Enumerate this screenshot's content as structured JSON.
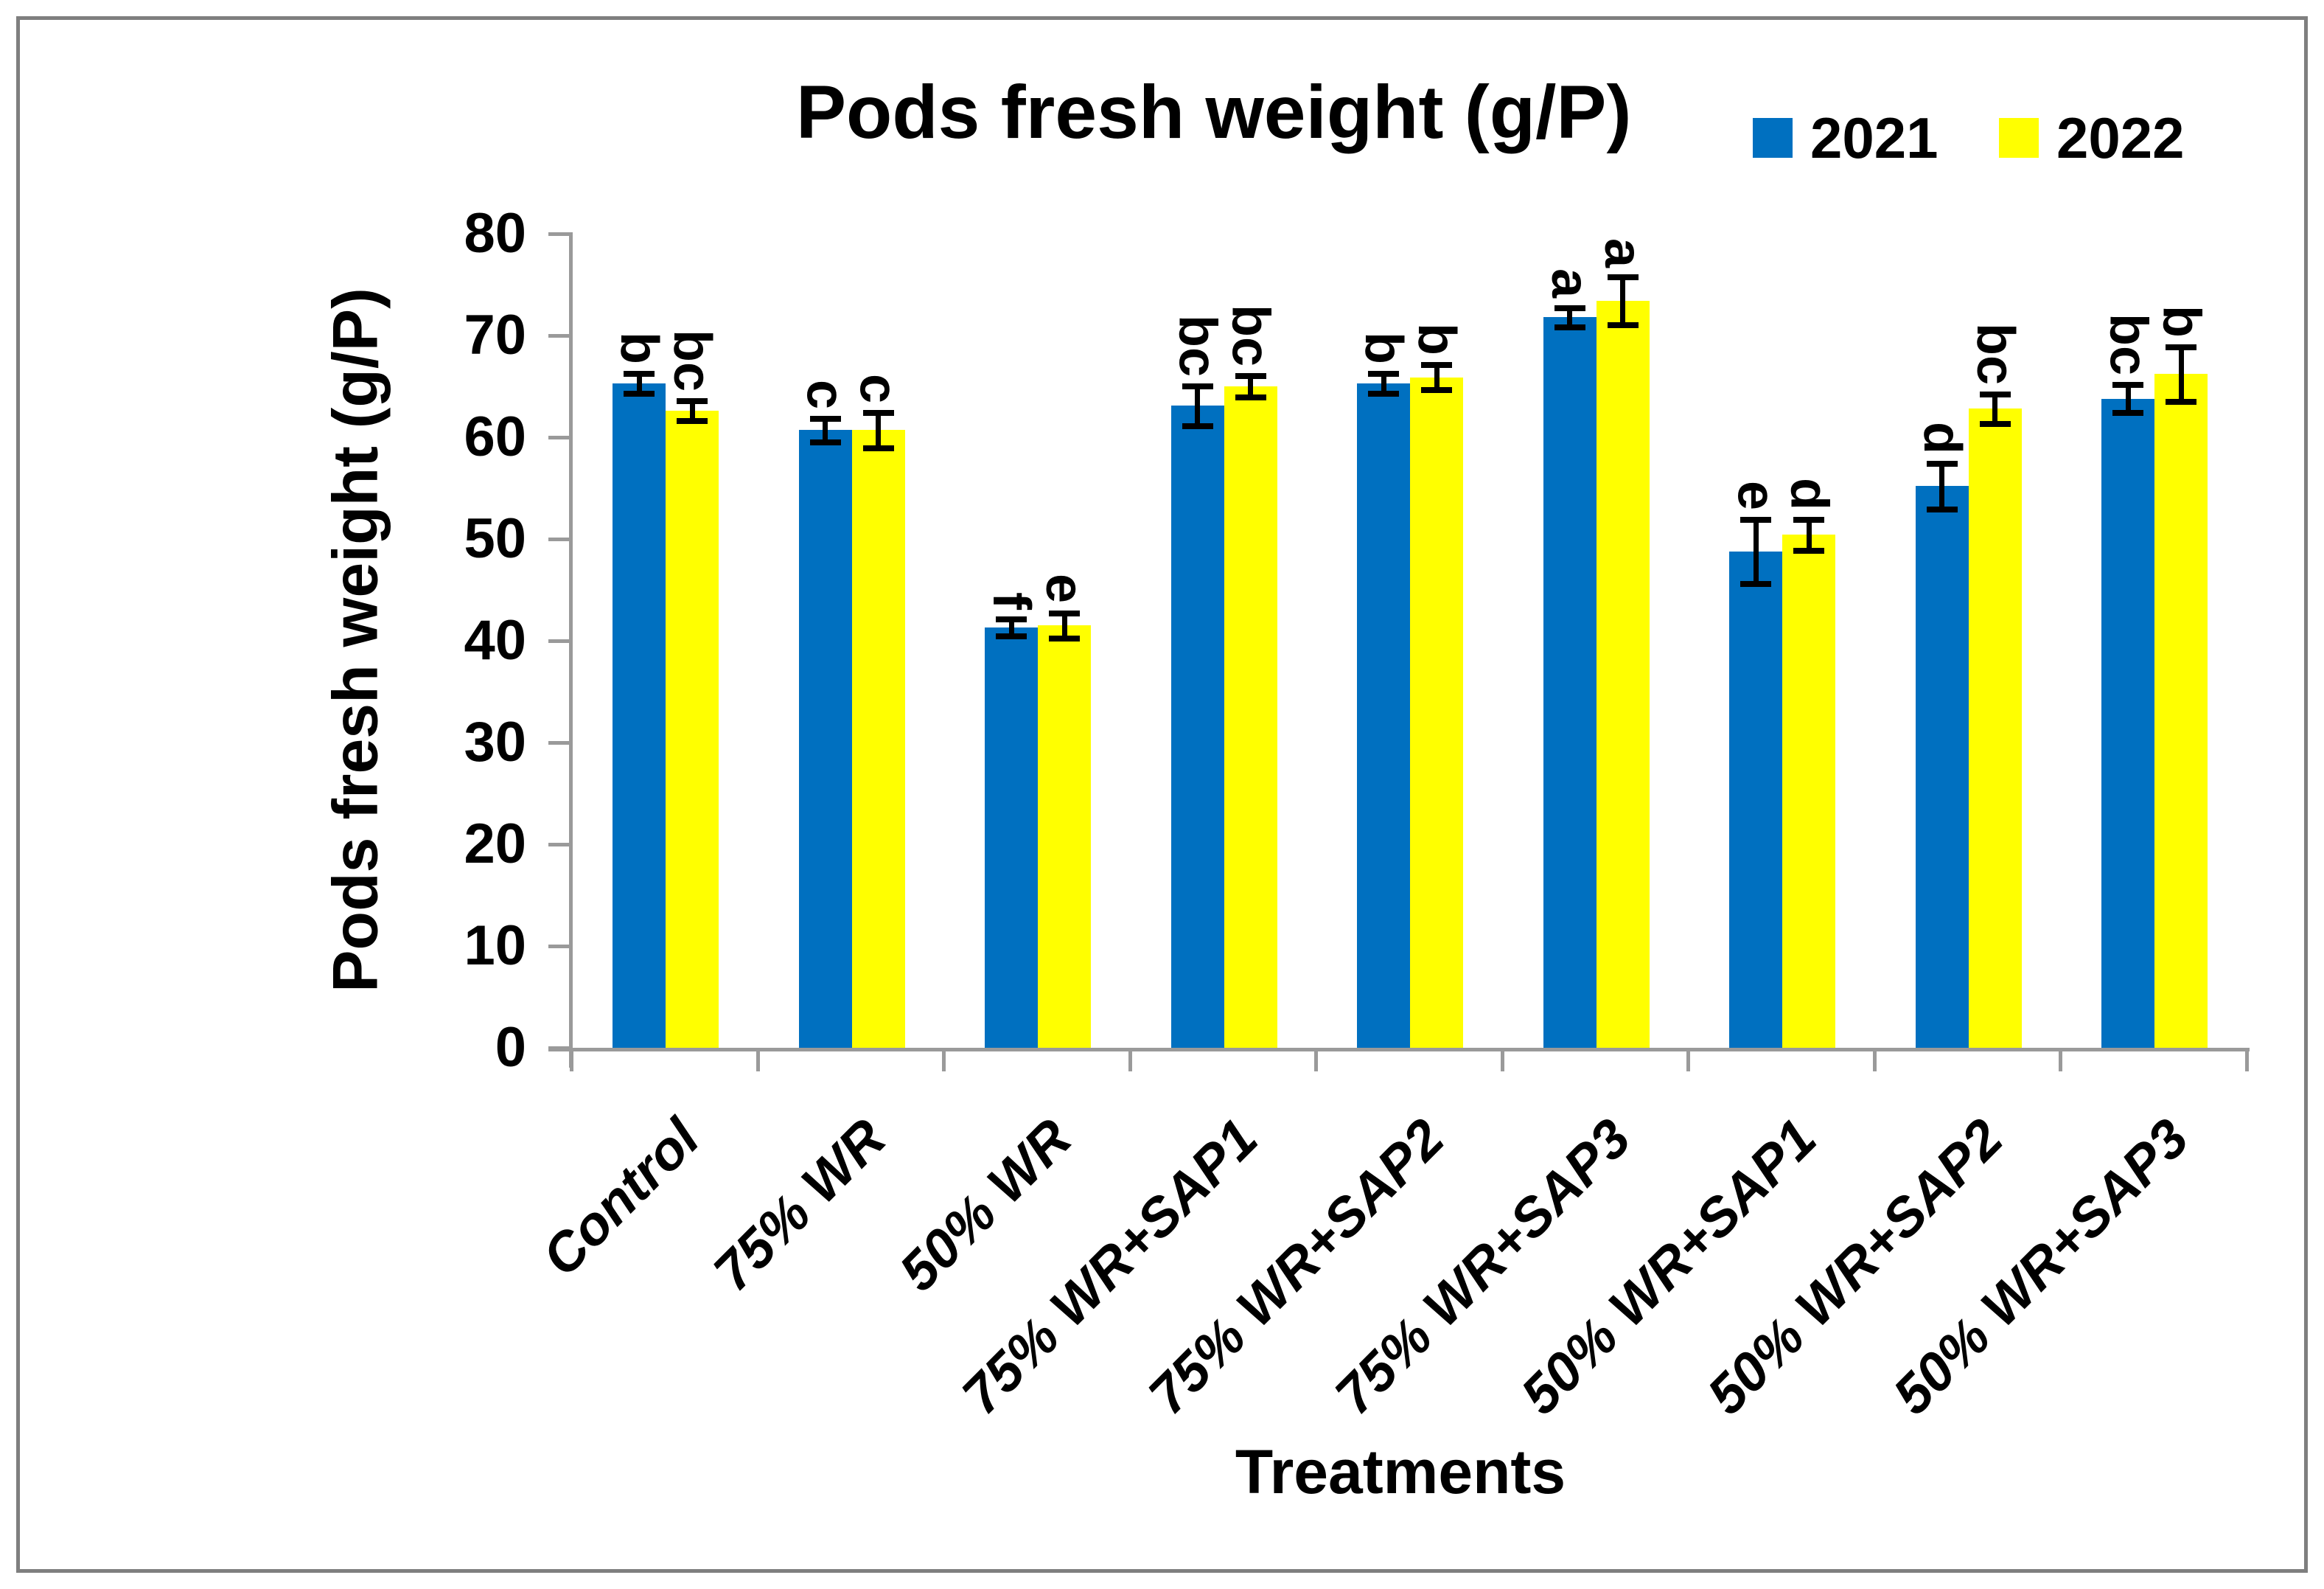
{
  "figure": {
    "title": "Pods fresh weight (g/P)",
    "y_axis_title": "Pods fresh weight (g/P)",
    "x_axis_title": "Treatments"
  },
  "legend": {
    "items": [
      {
        "label": "2021",
        "color": "#0070C0"
      },
      {
        "label": "2022",
        "color": "#FFFF00"
      }
    ],
    "position": "top-right"
  },
  "chart_data": {
    "type": "bar",
    "title": "Pods fresh weight (g/P)",
    "xlabel": "Treatments",
    "ylabel": "Pods fresh weight (g/P)",
    "ylim": [
      0,
      80
    ],
    "ytick_step": 10,
    "grid": false,
    "legend_position": "top-right",
    "categories": [
      "Control",
      "75% WR",
      "50% WR",
      "75% WR+SAP1",
      "75% WR+SAP2",
      "75% WR+SAP3",
      "50% WR+SAP1",
      "50% WR+SAP2",
      "50% WR+SAP3"
    ],
    "series": [
      {
        "name": "2021",
        "color": "#0070C0",
        "values": [
          65.3,
          60.7,
          41.3,
          63.1,
          65.3,
          71.8,
          48.8,
          55.2,
          63.8
        ],
        "errors": [
          0.7,
          0.9,
          0.6,
          1.7,
          0.7,
          0.7,
          2.9,
          2.0,
          1.1
        ],
        "letters": [
          "b",
          "c",
          "f",
          "bc",
          "b",
          "a",
          "e",
          "d",
          "bc"
        ]
      },
      {
        "name": "2022",
        "color": "#FFFF00",
        "values": [
          62.6,
          60.7,
          41.5,
          65.0,
          65.9,
          73.4,
          50.4,
          62.8,
          66.2
        ],
        "errors": [
          0.7,
          1.5,
          1.0,
          0.8,
          1.0,
          2.1,
          1.3,
          1.2,
          2.4
        ],
        "letters": [
          "bc",
          "c",
          "e",
          "bc",
          "b",
          "a",
          "d",
          "bc",
          "b"
        ]
      }
    ]
  },
  "colors": {
    "axis": "#9a9a9a",
    "frame": "#7f7f7f",
    "error_bar": "#000000",
    "text": "#000000",
    "background": "#ffffff"
  }
}
